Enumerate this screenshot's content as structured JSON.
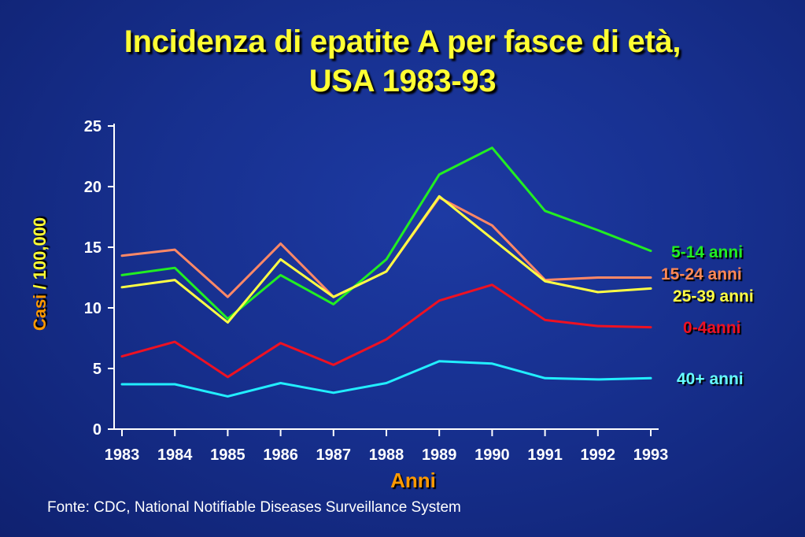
{
  "title_line1": "Incidenza di epatite A per fasce di età,",
  "title_line2": "USA 1983-93",
  "source": "Fonte: CDC, National Notifiable Diseases Surveillance System",
  "colors": {
    "title": "#ffff33",
    "axis_label_orange": "#ff9900",
    "axis_label_yellow": "#ffff33",
    "axis": "#ffffff"
  },
  "chart_data": {
    "type": "line",
    "title": "Incidenza di epatite A per fasce di età, USA 1983-93",
    "xlabel": "Anni",
    "ylabel": "Casi / 100,000",
    "ylabel_parts": {
      "a": "Casi",
      "b": " / ",
      "c": "100,000"
    },
    "x": [
      "1983",
      "1984",
      "1985",
      "1986",
      "1987",
      "1988",
      "1989",
      "1990",
      "1991",
      "1992",
      "1993"
    ],
    "ylim": [
      0,
      25
    ],
    "yticks": [
      "0",
      "5",
      "10",
      "15",
      "20",
      "25"
    ],
    "grid": false,
    "legend_placement": "right",
    "series": [
      {
        "name": "5-14 anni",
        "color": "#22ee22",
        "values": [
          12.7,
          13.3,
          9.1,
          12.7,
          10.3,
          14.0,
          21.0,
          23.2,
          18.0,
          16.4,
          14.7
        ]
      },
      {
        "name": "15-24 anni",
        "color": "#ff8866",
        "values": [
          14.3,
          14.8,
          10.9,
          15.3,
          10.9,
          13.0,
          19.1,
          16.8,
          12.3,
          12.5,
          12.5
        ]
      },
      {
        "name": "25-39 anni",
        "color": "#ffff44",
        "values": [
          11.7,
          12.3,
          8.8,
          14.0,
          10.9,
          13.0,
          19.2,
          15.7,
          12.2,
          11.3,
          11.6
        ]
      },
      {
        "name": "0-4anni",
        "color": "#ee1122",
        "values": [
          6.0,
          7.2,
          4.3,
          7.1,
          5.3,
          7.4,
          10.6,
          11.9,
          9.0,
          8.5,
          8.4
        ]
      },
      {
        "name": "40+ anni",
        "color": "#22eeff",
        "values": [
          3.7,
          3.7,
          2.7,
          3.8,
          3.0,
          3.8,
          5.6,
          5.4,
          4.2,
          4.1,
          4.2
        ]
      }
    ]
  }
}
